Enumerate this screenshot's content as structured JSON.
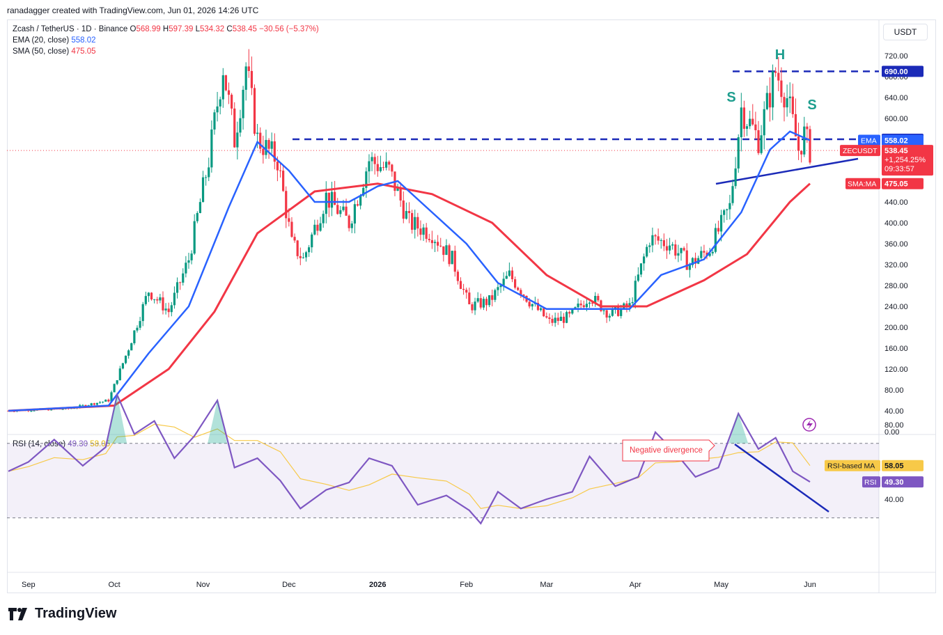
{
  "header": {
    "credit": "ranadagger created with TradingView.com, Jun 01, 2026 14:26 UTC"
  },
  "legend": {
    "symbol": "Zcash / TetherUS · 1D · Binance",
    "o_label": "O",
    "o_value": "568.99",
    "h_label": "H",
    "h_value": "597.39",
    "l_label": "L",
    "l_value": "534.32",
    "c_label": "C",
    "c_value": "538.45",
    "change": "−30.56 (−5.37%)",
    "ema_label": "EMA (20, close)",
    "ema_value": "558.02",
    "sma_label": "SMA (50, close)",
    "sma_value": "475.05",
    "rsi_label": "RSI (14, close)",
    "rsi_value": "49.30",
    "rsi_ma_value": "58.05"
  },
  "currency_button": "USDT",
  "price_axis": {
    "ticks": [
      "720.00",
      "680.00",
      "640.00",
      "600.00",
      "440.00",
      "400.00",
      "360.00",
      "320.00",
      "280.00",
      "240.00",
      "200.00",
      "160.00",
      "120.00",
      "80.00",
      "40.00",
      "0.00"
    ],
    "tick_values": [
      720,
      680,
      640,
      600,
      440,
      400,
      360,
      320,
      280,
      240,
      200,
      160,
      120,
      80,
      40,
      0
    ],
    "range": [
      0,
      735
    ]
  },
  "price_labels": {
    "level_690": "690.00",
    "level_560": "560.00",
    "ema_tag": "EMA",
    "ema_value": "558.02",
    "symbol_tag": "ZECUSDT",
    "last_price": "538.45",
    "pct": "+1,254.25%",
    "countdown": "09:33:57",
    "sma_tag": "SMA:MA",
    "sma_value": "475.05"
  },
  "annotations": {
    "left_shoulder": "S",
    "head": "H",
    "right_shoulder": "S",
    "divergence": "Negative divergence"
  },
  "rsi_axis": {
    "ticks": [
      "80.00",
      "40.00"
    ],
    "tick_values": [
      80,
      40
    ],
    "ma_tag": "RSI-based MA",
    "ma_value": "58.05",
    "rsi_tag": "RSI",
    "rsi_value": "49.30",
    "upper_band": 70,
    "lower_band": 30
  },
  "time_axis": {
    "labels": [
      "Sep",
      "Oct",
      "Nov",
      "Dec",
      "2026",
      "Feb",
      "Mar",
      "Apr",
      "May",
      "Jun"
    ]
  },
  "brand": "TradingView",
  "colors": {
    "up": "#089981",
    "down": "#f23645",
    "ema": "#2962ff",
    "sma": "#f23645",
    "rsi": "#7e57c2",
    "rsi_ma": "#f7c948",
    "level_line": "#1b2ab8",
    "annotation": "#1e9e8e"
  },
  "chart_data": {
    "type": "line",
    "title": "Zcash / TetherUS · 1D · Binance",
    "x_range": [
      "2025-08-25",
      "2026-06-01"
    ],
    "series": [
      {
        "name": "ZECUSDT",
        "points": [
          [
            "2025-08-25",
            40
          ],
          [
            "2025-09-15",
            44
          ],
          [
            "2025-09-29",
            60
          ],
          [
            "2025-10-06",
            160
          ],
          [
            "2025-10-13",
            270
          ],
          [
            "2025-10-20",
            230
          ],
          [
            "2025-10-27",
            330
          ],
          [
            "2025-11-03",
            520
          ],
          [
            "2025-11-08",
            700
          ],
          [
            "2025-11-12",
            560
          ],
          [
            "2025-11-16",
            700
          ],
          [
            "2025-11-20",
            560
          ],
          [
            "2025-11-27",
            520
          ],
          [
            "2025-12-02",
            360
          ],
          [
            "2025-12-06",
            330
          ],
          [
            "2025-12-14",
            450
          ],
          [
            "2025-12-22",
            400
          ],
          [
            "2025-12-29",
            520
          ],
          [
            "2026-01-05",
            500
          ],
          [
            "2026-01-12",
            400
          ],
          [
            "2026-01-20",
            380
          ],
          [
            "2026-01-27",
            330
          ],
          [
            "2026-02-02",
            240
          ],
          [
            "2026-02-09",
            250
          ],
          [
            "2026-02-16",
            300
          ],
          [
            "2026-02-23",
            250
          ],
          [
            "2026-03-02",
            210
          ],
          [
            "2026-03-09",
            220
          ],
          [
            "2026-03-16",
            260
          ],
          [
            "2026-03-23",
            225
          ],
          [
            "2026-03-30",
            240
          ],
          [
            "2026-04-06",
            370
          ],
          [
            "2026-04-13",
            360
          ],
          [
            "2026-04-20",
            320
          ],
          [
            "2026-04-27",
            350
          ],
          [
            "2026-05-04",
            430
          ],
          [
            "2026-05-08",
            620
          ],
          [
            "2026-05-14",
            560
          ],
          [
            "2026-05-20",
            690
          ],
          [
            "2026-05-24",
            640
          ],
          [
            "2026-05-28",
            540
          ],
          [
            "2026-05-30",
            569
          ],
          [
            "2026-06-01",
            538.45
          ]
        ]
      },
      {
        "name": "EMA (20, close)",
        "points": [
          [
            "2025-08-25",
            40
          ],
          [
            "2025-09-29",
            50
          ],
          [
            "2025-10-13",
            150
          ],
          [
            "2025-10-27",
            240
          ],
          [
            "2025-11-10",
            430
          ],
          [
            "2025-11-20",
            555
          ],
          [
            "2025-12-01",
            500
          ],
          [
            "2025-12-10",
            440
          ],
          [
            "2025-12-22",
            440
          ],
          [
            "2026-01-01",
            470
          ],
          [
            "2026-01-08",
            480
          ],
          [
            "2026-01-20",
            420
          ],
          [
            "2026-02-01",
            360
          ],
          [
            "2026-02-12",
            285
          ],
          [
            "2026-03-01",
            235
          ],
          [
            "2026-03-15",
            235
          ],
          [
            "2026-03-30",
            235
          ],
          [
            "2026-04-10",
            300
          ],
          [
            "2026-04-25",
            330
          ],
          [
            "2026-05-08",
            420
          ],
          [
            "2026-05-18",
            540
          ],
          [
            "2026-05-25",
            575
          ],
          [
            "2026-06-01",
            558.02
          ]
        ]
      },
      {
        "name": "SMA (50, close)",
        "points": [
          [
            "2025-08-25",
            40
          ],
          [
            "2025-10-01",
            50
          ],
          [
            "2025-10-20",
            120
          ],
          [
            "2025-11-05",
            230
          ],
          [
            "2025-11-20",
            380
          ],
          [
            "2025-12-10",
            460
          ],
          [
            "2026-01-01",
            475
          ],
          [
            "2026-01-20",
            455
          ],
          [
            "2026-02-10",
            400
          ],
          [
            "2026-03-01",
            300
          ],
          [
            "2026-03-20",
            240
          ],
          [
            "2026-04-05",
            240
          ],
          [
            "2026-04-25",
            290
          ],
          [
            "2026-05-10",
            340
          ],
          [
            "2026-05-25",
            440
          ],
          [
            "2026-06-01",
            475.05
          ]
        ]
      }
    ],
    "rsi": {
      "name": "RSI (14, close)",
      "points": [
        [
          "2025-08-25",
          55
        ],
        [
          "2025-09-01",
          60
        ],
        [
          "2025-09-10",
          72
        ],
        [
          "2025-09-20",
          58
        ],
        [
          "2025-09-28",
          68
        ],
        [
          "2025-10-02",
          96
        ],
        [
          "2025-10-08",
          75
        ],
        [
          "2025-10-15",
          82
        ],
        [
          "2025-10-22",
          62
        ],
        [
          "2025-10-29",
          74
        ],
        [
          "2025-11-06",
          93
        ],
        [
          "2025-11-12",
          57
        ],
        [
          "2025-11-20",
          62
        ],
        [
          "2025-11-28",
          50
        ],
        [
          "2025-12-05",
          35
        ],
        [
          "2025-12-14",
          45
        ],
        [
          "2025-12-22",
          49
        ],
        [
          "2025-12-29",
          62
        ],
        [
          "2026-01-06",
          58
        ],
        [
          "2026-01-15",
          37
        ],
        [
          "2026-01-25",
          42
        ],
        [
          "2026-02-02",
          34
        ],
        [
          "2026-02-06",
          27
        ],
        [
          "2026-02-12",
          44
        ],
        [
          "2026-02-20",
          35
        ],
        [
          "2026-03-01",
          40
        ],
        [
          "2026-03-10",
          44
        ],
        [
          "2026-03-16",
          63
        ],
        [
          "2026-03-25",
          47
        ],
        [
          "2026-04-02",
          52
        ],
        [
          "2026-04-08",
          76
        ],
        [
          "2026-04-15",
          65
        ],
        [
          "2026-04-22",
          52
        ],
        [
          "2026-04-30",
          57
        ],
        [
          "2026-05-07",
          86
        ],
        [
          "2026-05-14",
          67
        ],
        [
          "2026-05-20",
          73
        ],
        [
          "2026-05-26",
          55
        ],
        [
          "2026-06-01",
          49.3
        ]
      ]
    },
    "rsi_ma": {
      "name": "RSI-based MA",
      "last": 58.05
    },
    "levels": {
      "neckline_resistance": 560,
      "head_high": 690
    },
    "ylim": [
      0,
      735
    ]
  }
}
